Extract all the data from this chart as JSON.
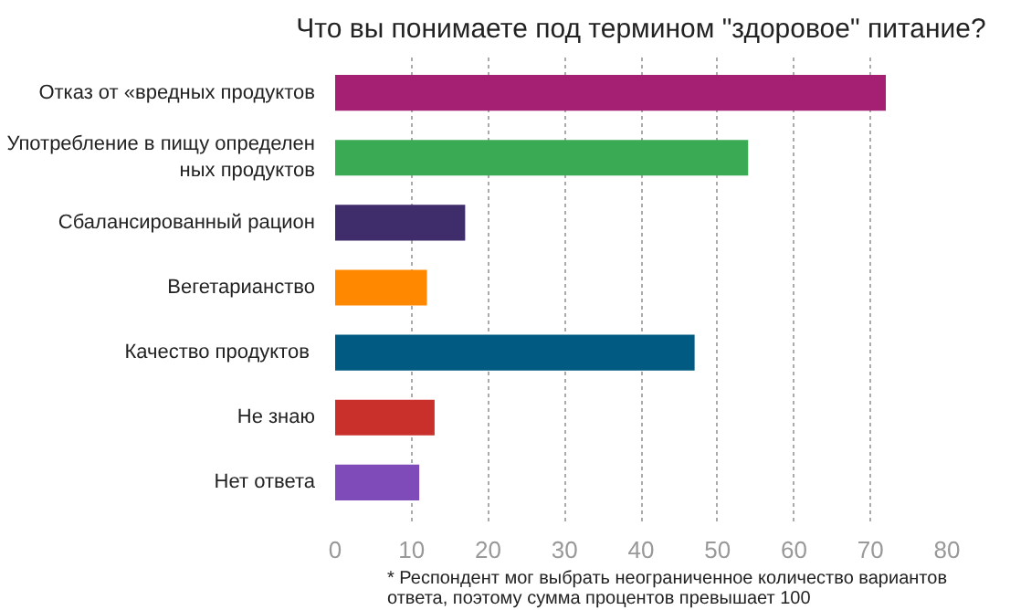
{
  "chart_data": {
    "type": "bar",
    "orientation": "horizontal",
    "title": "Что вы понимаете под термином \"здоровое\" питание?",
    "categories": [
      "Отказ от «вредных продуктов",
      "Употребление в пищу определен\nных продуктов",
      "Сбалансированный рацион",
      "Вегетарианство",
      "Качество продуктов ",
      "Не знаю",
      "Нет ответа"
    ],
    "values": [
      72,
      54,
      17,
      12,
      47,
      13,
      11
    ],
    "colors": [
      "#a51f73",
      "#3aab54",
      "#3e2c6b",
      "#ff8800",
      "#005a82",
      "#c9302c",
      "#7f4bb8"
    ],
    "xlim": [
      0,
      80
    ],
    "xticks": [
      0,
      10,
      20,
      30,
      40,
      50,
      60,
      70,
      80
    ],
    "grid": "x",
    "annotations": [
      "* Респондент мог выбрать неограниченное количество вариантов\nответа, поэтому сумма процентов превышает 100"
    ]
  }
}
